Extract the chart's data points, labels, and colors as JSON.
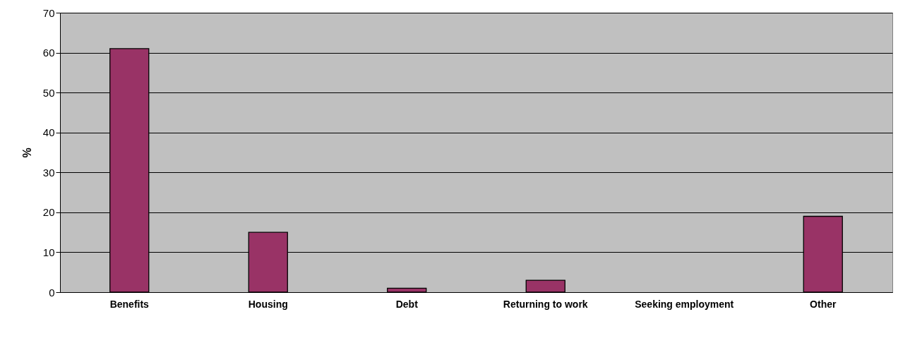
{
  "chart_data": {
    "type": "bar",
    "ylabel": "%",
    "categories": [
      "Benefits",
      "Housing",
      "Debt",
      "Returning to work",
      "Seeking employment",
      "Other"
    ],
    "values": [
      61,
      15,
      1,
      3,
      0,
      19
    ],
    "color": "#993366",
    "ylim": [
      0,
      70
    ],
    "yticks": [
      0,
      10,
      20,
      30,
      40,
      50,
      60,
      70
    ],
    "grid": "y"
  }
}
